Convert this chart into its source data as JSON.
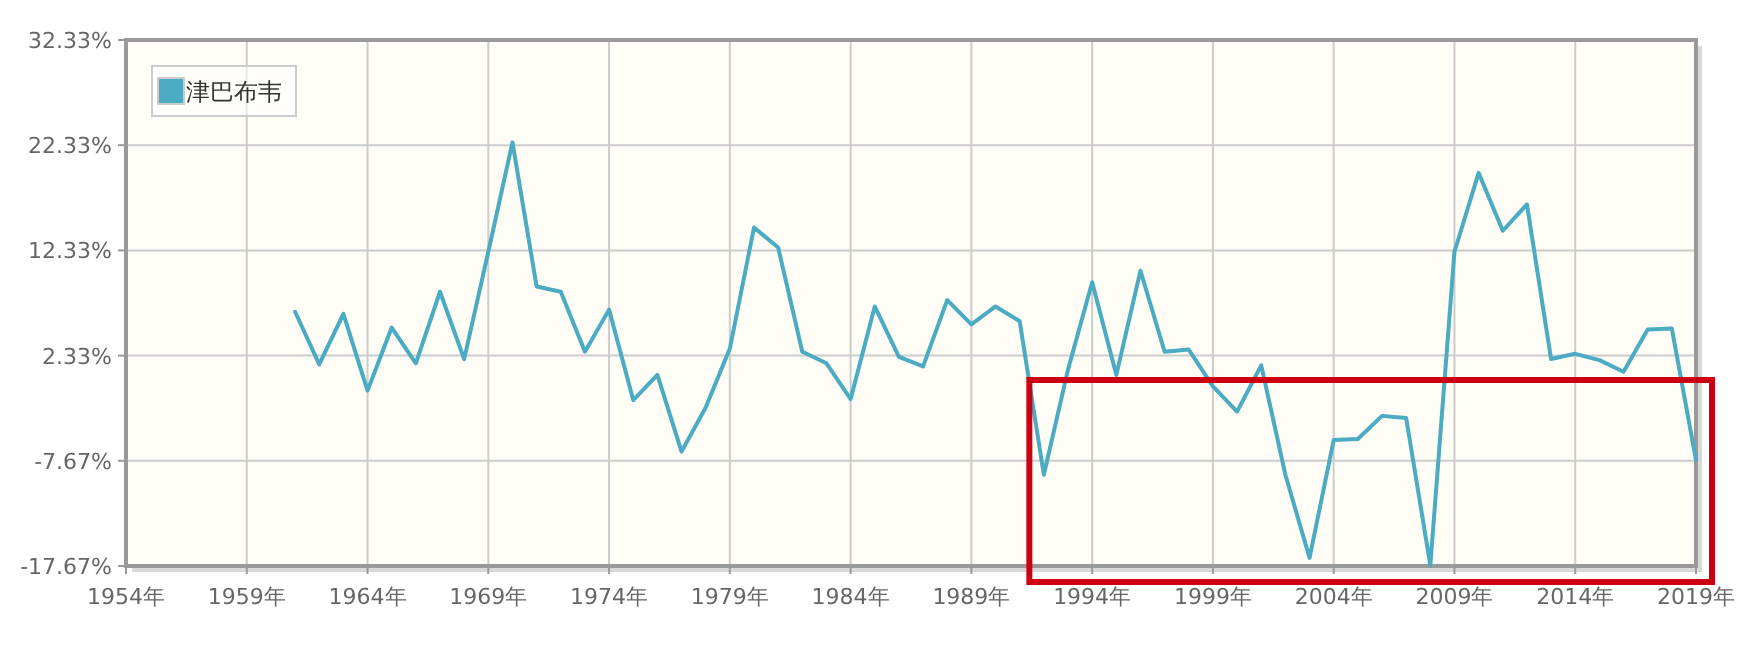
{
  "chart_data": {
    "type": "line",
    "x": [
      1961,
      1962,
      1963,
      1964,
      1965,
      1966,
      1967,
      1968,
      1969,
      1970,
      1971,
      1972,
      1973,
      1974,
      1975,
      1976,
      1977,
      1978,
      1979,
      1980,
      1981,
      1982,
      1983,
      1984,
      1985,
      1986,
      1987,
      1988,
      1989,
      1990,
      1991,
      1992,
      1993,
      1994,
      1995,
      1996,
      1997,
      1998,
      1999,
      2000,
      2001,
      2002,
      2003,
      2004,
      2005,
      2006,
      2007,
      2008,
      2009,
      2010,
      2011,
      2012,
      2013,
      2014,
      2015,
      2016,
      2017,
      2018,
      2019
    ],
    "series": [
      {
        "name": "津巴布韦",
        "color": "#4aabc3",
        "values": [
          6.5,
          1.5,
          6.3,
          -1.0,
          5.0,
          1.6,
          8.4,
          2.0,
          12.2,
          22.6,
          8.9,
          8.4,
          2.7,
          6.7,
          -1.9,
          0.5,
          -6.8,
          -2.6,
          3.0,
          14.5,
          12.6,
          2.7,
          1.6,
          -1.8,
          7.0,
          2.2,
          1.3,
          7.6,
          5.3,
          7.0,
          5.6,
          -9.0,
          1.0,
          9.3,
          0.5,
          10.4,
          2.7,
          2.9,
          -0.6,
          -3.0,
          1.4,
          -9.0,
          -16.9,
          -5.7,
          -5.6,
          -3.4,
          -3.6,
          -17.6,
          12.2,
          19.7,
          14.2,
          16.7,
          2.0,
          2.5,
          1.9,
          0.8,
          4.8,
          4.9,
          -7.6
        ]
      }
    ],
    "xlim": [
      1954,
      2019
    ],
    "xticks": [
      {
        "value": 1954,
        "label": "1954年"
      },
      {
        "value": 1959,
        "label": "1959年"
      },
      {
        "value": 1964,
        "label": "1964年"
      },
      {
        "value": 1969,
        "label": "1969年"
      },
      {
        "value": 1974,
        "label": "1974年"
      },
      {
        "value": 1979,
        "label": "1979年"
      },
      {
        "value": 1984,
        "label": "1984年"
      },
      {
        "value": 1989,
        "label": "1989年"
      },
      {
        "value": 1994,
        "label": "1994年"
      },
      {
        "value": 1999,
        "label": "1999年"
      },
      {
        "value": 2004,
        "label": "2004年"
      },
      {
        "value": 2009,
        "label": "2009年"
      },
      {
        "value": 2014,
        "label": "2014年"
      },
      {
        "value": 2019,
        "label": "2019年"
      }
    ],
    "ylim": [
      -17.67,
      32.33
    ],
    "yticks": [
      {
        "value": -17.67,
        "label": "-17.67%"
      },
      {
        "value": -7.67,
        "label": "-7.67%"
      },
      {
        "value": 2.33,
        "label": "2.33%"
      },
      {
        "value": 12.33,
        "label": "12.33%"
      },
      {
        "value": 22.33,
        "label": "22.33%"
      },
      {
        "value": 32.33,
        "label": "32.33%"
      }
    ],
    "grid": true,
    "legend": "top left",
    "marker": "none",
    "line_style": "solid"
  }
}
